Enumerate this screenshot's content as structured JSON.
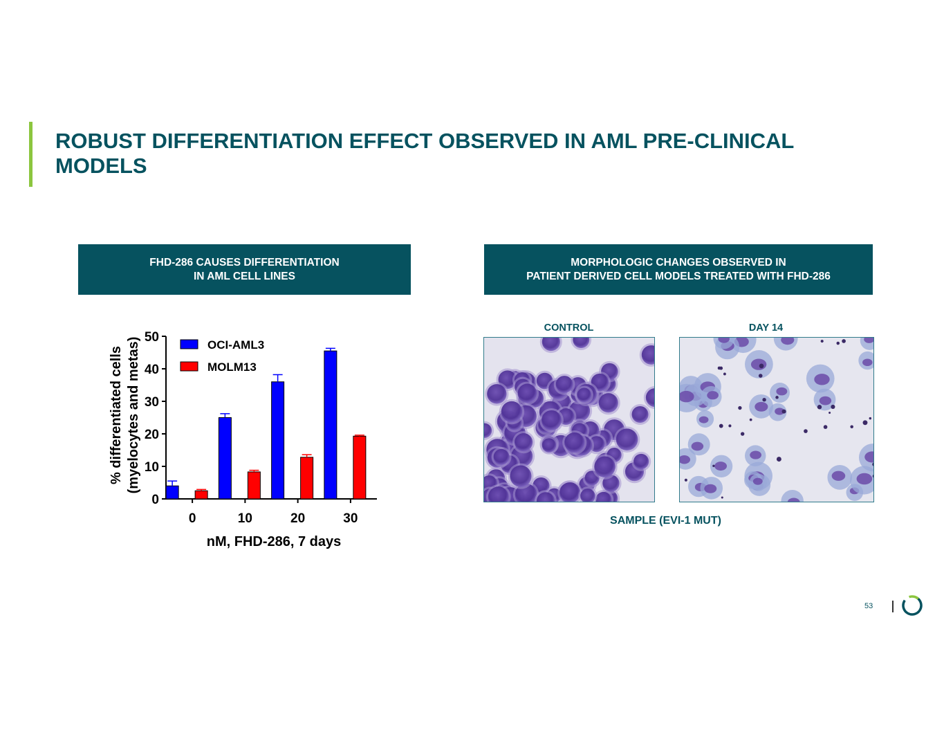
{
  "slide": {
    "title": "ROBUST DIFFERENTIATION EFFECT OBSERVED IN AML PRE-CLINICAL MODELS",
    "page_number": "53",
    "accent_color": "#8cc63f",
    "brand_color": "#06525f"
  },
  "left_panel": {
    "header_line1": "FHD-286 CAUSES DIFFERENTIATION",
    "header_line2": "IN AML CELL LINES"
  },
  "right_panel": {
    "header_line1": "MORPHOLOGIC CHANGES OBSERVED IN",
    "header_line2": "PATIENT DERIVED CELL MODELS TREATED WITH FHD-286",
    "control_label": "CONTROL",
    "day14_label": "DAY 14",
    "sample_label": "SAMPLE (EVI-1 MUT)"
  },
  "chart_data": {
    "type": "bar",
    "categories": [
      "0",
      "10",
      "20",
      "30"
    ],
    "series": [
      {
        "name": "OCI-AML3",
        "color": "#0000ff",
        "values": [
          4,
          25,
          36,
          45.5
        ],
        "errors": [
          1.5,
          1.2,
          2.2,
          0.8
        ]
      },
      {
        "name": "MOLM13",
        "color": "#ff0000",
        "values": [
          2.5,
          8.3,
          12.8,
          19.3
        ],
        "errors": [
          0.4,
          0.5,
          0.8,
          0.3
        ]
      }
    ],
    "xlabel": "nM, FHD-286, 7 days",
    "ylabel_line1": "% differentiated cells",
    "ylabel_line2": "(myelocytes and metas)",
    "ylim": [
      0,
      50
    ],
    "yticks": [
      "0",
      "10",
      "20",
      "30",
      "40",
      "50"
    ],
    "legend_position": "top-left",
    "grid": false
  }
}
